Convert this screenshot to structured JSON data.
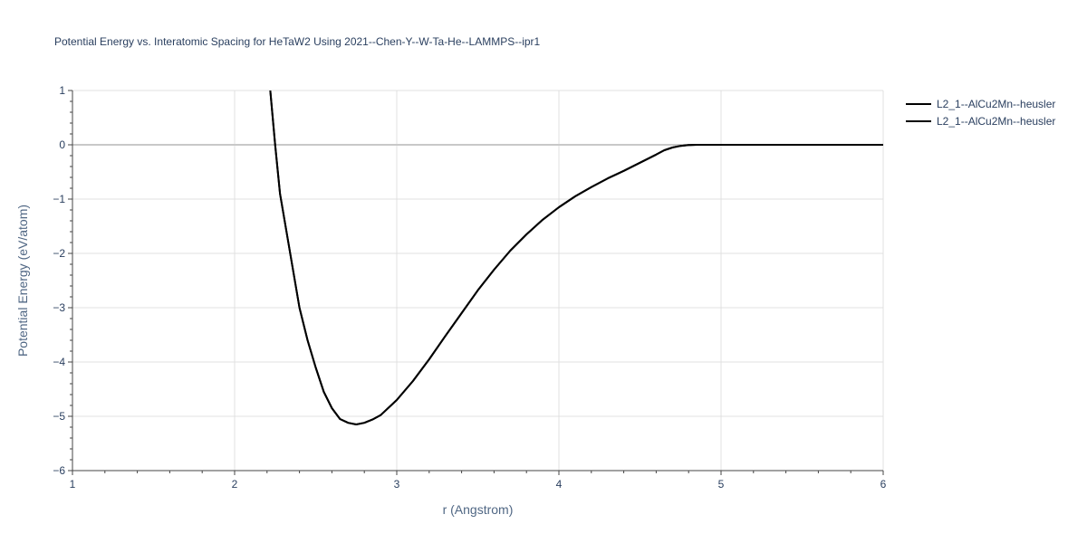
{
  "chart_data": {
    "type": "line",
    "title": "Potential Energy vs. Interatomic Spacing for HeTaW2 Using 2021--Chen-Y--W-Ta-He--LAMMPS--ipr1",
    "xlabel": "r (Angstrom)",
    "ylabel": "Potential Energy (eV/atom)",
    "xlim": [
      1,
      6
    ],
    "ylim": [
      -6,
      1
    ],
    "x_ticks": [
      "1",
      "2",
      "3",
      "4",
      "5",
      "6"
    ],
    "y_ticks": [
      "1",
      "0",
      "−1",
      "−2",
      "−3",
      "−4",
      "−5",
      "−6"
    ],
    "grid": true,
    "legend_position": "top-right",
    "series": [
      {
        "name": "L2_1--AlCu2Mn--heusler",
        "color": "#000000",
        "x": [
          2.22,
          2.25,
          2.28,
          2.32,
          2.36,
          2.4,
          2.45,
          2.5,
          2.55,
          2.6,
          2.65,
          2.7,
          2.75,
          2.8,
          2.85,
          2.9,
          3.0,
          3.1,
          3.2,
          3.3,
          3.4,
          3.5,
          3.6,
          3.7,
          3.8,
          3.9,
          4.0,
          4.1,
          4.2,
          4.3,
          4.4,
          4.5,
          4.6,
          4.65,
          4.7,
          4.75,
          4.8,
          4.85,
          5.0,
          5.5,
          6.0
        ],
        "y": [
          1.0,
          0.0,
          -0.9,
          -1.6,
          -2.3,
          -3.0,
          -3.6,
          -4.1,
          -4.55,
          -4.85,
          -5.05,
          -5.12,
          -5.15,
          -5.12,
          -5.06,
          -4.98,
          -4.7,
          -4.35,
          -3.95,
          -3.52,
          -3.1,
          -2.68,
          -2.3,
          -1.95,
          -1.65,
          -1.38,
          -1.15,
          -0.95,
          -0.78,
          -0.62,
          -0.48,
          -0.33,
          -0.18,
          -0.1,
          -0.05,
          -0.02,
          -0.005,
          0.0,
          0.0,
          0.0,
          0.0
        ]
      },
      {
        "name": "L2_1--AlCu2Mn--heusler",
        "color": "#000000",
        "x": [
          2.22,
          2.25,
          2.28,
          2.32,
          2.36,
          2.4,
          2.45,
          2.5,
          2.55,
          2.6,
          2.65,
          2.7,
          2.75,
          2.8,
          2.85,
          2.9,
          3.0,
          3.1,
          3.2,
          3.3,
          3.4,
          3.5,
          3.6,
          3.7,
          3.8,
          3.9,
          4.0,
          4.1,
          4.2,
          4.3,
          4.4,
          4.5,
          4.6,
          4.65,
          4.7,
          4.75,
          4.8,
          4.85,
          5.0,
          5.5,
          6.0
        ],
        "y": [
          1.0,
          0.0,
          -0.9,
          -1.6,
          -2.3,
          -3.0,
          -3.6,
          -4.1,
          -4.55,
          -4.85,
          -5.05,
          -5.12,
          -5.15,
          -5.12,
          -5.06,
          -4.98,
          -4.7,
          -4.35,
          -3.95,
          -3.52,
          -3.1,
          -2.68,
          -2.3,
          -1.95,
          -1.65,
          -1.38,
          -1.15,
          -0.95,
          -0.78,
          -0.62,
          -0.48,
          -0.33,
          -0.18,
          -0.1,
          -0.05,
          -0.02,
          -0.005,
          0.0,
          0.0,
          0.0,
          0.0
        ]
      }
    ]
  }
}
